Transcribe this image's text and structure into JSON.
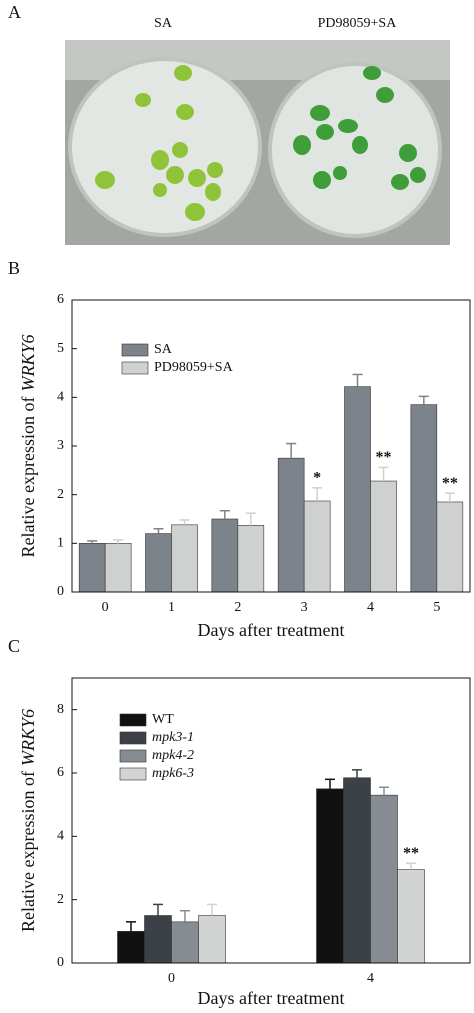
{
  "panel_a": {
    "label": "A",
    "captions": [
      "SA",
      "PD98059+SA"
    ]
  },
  "chart_data": [
    {
      "type": "bar",
      "panel_label": "B",
      "ylabel": [
        "Relative expression of",
        "WRKY6"
      ],
      "xlabel": "Days after treatment",
      "categories": [
        "0",
        "1",
        "2",
        "3",
        "4",
        "5"
      ],
      "series": [
        {
          "name": "SA",
          "color": "#7d838a",
          "values": [
            1.0,
            1.2,
            1.5,
            2.75,
            4.22,
            3.85
          ],
          "errors": [
            0.05,
            0.1,
            0.17,
            0.3,
            0.25,
            0.17
          ],
          "annotations": [
            null,
            null,
            null,
            null,
            null,
            null
          ],
          "italic": false
        },
        {
          "name": "PD98059+SA",
          "color": "#cfd0d0",
          "values": [
            1.0,
            1.38,
            1.37,
            1.87,
            2.28,
            1.85
          ],
          "errors": [
            0.07,
            0.1,
            0.25,
            0.27,
            0.28,
            0.18
          ],
          "annotations": [
            null,
            null,
            null,
            "*",
            "**",
            "**"
          ],
          "italic": false
        }
      ],
      "ylim": [
        0,
        6
      ],
      "yticks": [
        0,
        1,
        2,
        3,
        4,
        5,
        6
      ]
    },
    {
      "type": "bar",
      "panel_label": "C",
      "ylabel": [
        "Relative expression of",
        "WRKY6"
      ],
      "xlabel": "Days after treatment",
      "categories": [
        "0",
        "4"
      ],
      "series": [
        {
          "name": "WT",
          "color": "#111111",
          "values": [
            1.0,
            5.5
          ],
          "errors": [
            0.3,
            0.3
          ],
          "annotations": [
            null,
            null
          ],
          "italic": false
        },
        {
          "name": "mpk3-1",
          "color": "#3c4147",
          "values": [
            1.5,
            5.85
          ],
          "errors": [
            0.35,
            0.25
          ],
          "annotations": [
            null,
            null
          ],
          "italic": true
        },
        {
          "name": "mpk4-2",
          "color": "#868c92",
          "values": [
            1.3,
            5.3
          ],
          "errors": [
            0.35,
            0.25
          ],
          "annotations": [
            null,
            null
          ],
          "italic": true
        },
        {
          "name": "mpk6-3",
          "color": "#d2d3d3",
          "values": [
            1.5,
            2.95
          ],
          "errors": [
            0.35,
            0.2
          ],
          "annotations": [
            null,
            "**"
          ],
          "italic": true
        }
      ],
      "ylim": [
        0,
        9
      ],
      "yticks": [
        0,
        2,
        4,
        6,
        8
      ]
    }
  ]
}
